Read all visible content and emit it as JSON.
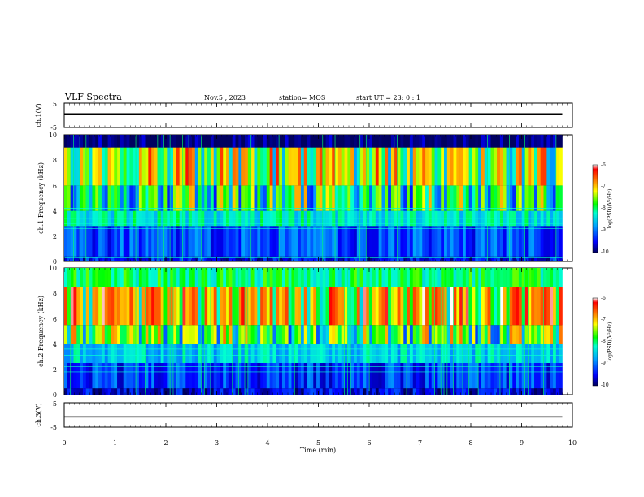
{
  "header": {
    "title": "VLF Spectra",
    "date": "Nov.5 , 2023",
    "station": "station= MOS",
    "start": "start UT = 23: 0 : 1"
  },
  "colors": {
    "background": "#000000",
    "low": "#0000ff",
    "mid": "#00ff00",
    "high": "#ff0000",
    "line": "#000000"
  },
  "chart_data": [
    {
      "type": "line",
      "panel": "ch1-voltage",
      "ylabel": "ch.1(V)",
      "yticks": [
        "5",
        "-5"
      ],
      "ylim": [
        -5,
        5
      ],
      "x": [
        0,
        9.8
      ],
      "values": [
        0.6,
        0.6
      ]
    },
    {
      "type": "heatmap",
      "panel": "ch1-spectrogram",
      "ylabel": "ch.1 Frequency (kHz)",
      "ylim": [
        0,
        10
      ],
      "yticks": [
        "0",
        "2",
        "4",
        "6",
        "8",
        "10"
      ],
      "xlim": [
        0,
        10
      ],
      "colorbar": {
        "label": "log(PSD)(V²/Hz)",
        "range": [
          -10,
          -6
        ],
        "ticks": [
          "-6",
          "-7",
          "-8",
          "-9",
          "-10"
        ]
      },
      "bands_khz": [
        {
          "range": [
            0,
            0.4
          ],
          "logpsd": -9.5
        },
        {
          "range": [
            0.4,
            2.8
          ],
          "logpsd": -9.2
        },
        {
          "range": [
            2.8,
            4.0
          ],
          "logpsd": -8.3
        },
        {
          "range": [
            4.0,
            6.0
          ],
          "logpsd": -7.8
        },
        {
          "range": [
            6.0,
            9.0
          ],
          "logpsd": -7.2
        },
        {
          "range": [
            9.0,
            10.0
          ],
          "logpsd": -10
        }
      ],
      "lines_khz": [
        0.3,
        2.6,
        3.0,
        3.4,
        4.2
      ]
    },
    {
      "type": "heatmap",
      "panel": "ch2-spectrogram",
      "ylabel": "ch.2 Frequency (kHz)",
      "ylim": [
        0,
        10
      ],
      "yticks": [
        "0",
        "2",
        "4",
        "6",
        "8",
        "10"
      ],
      "xlim": [
        0,
        10
      ],
      "colorbar": {
        "label": "log(PSD)(V²/Hz)",
        "range": [
          -10,
          -6
        ],
        "ticks": [
          "-6",
          "-7",
          "-8",
          "-9",
          "-10"
        ]
      },
      "bands_khz": [
        {
          "range": [
            0,
            0.5
          ],
          "logpsd": -9.6
        },
        {
          "range": [
            0.5,
            2.5
          ],
          "logpsd": -9.3
        },
        {
          "range": [
            2.5,
            4.0
          ],
          "logpsd": -8.5
        },
        {
          "range": [
            4.0,
            5.5
          ],
          "logpsd": -7.6
        },
        {
          "range": [
            5.5,
            8.5
          ],
          "logpsd": -6.9
        },
        {
          "range": [
            8.5,
            10.0
          ],
          "logpsd": -8.0
        }
      ],
      "lines_khz": [
        1.8,
        2.2,
        3.1,
        3.6
      ]
    },
    {
      "type": "line",
      "panel": "ch3-voltage",
      "ylabel": "ch.3(V)",
      "yticks": [
        "5",
        "-5"
      ],
      "ylim": [
        -5,
        5
      ],
      "x": [
        0,
        9.8
      ],
      "values": [
        -0.8,
        -0.8
      ]
    }
  ],
  "xaxis": {
    "label": "Time (min)",
    "ticks": [
      "0",
      "1",
      "2",
      "3",
      "4",
      "5",
      "6",
      "7",
      "8",
      "9",
      "10"
    ],
    "data_end": 9.8
  }
}
